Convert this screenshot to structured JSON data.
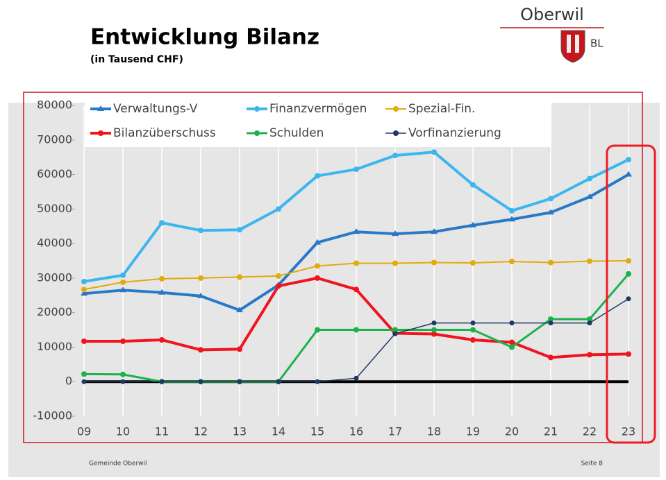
{
  "header": {
    "title": "Entwicklung Bilanz",
    "subtitle": "(in Tausend CHF)",
    "logo_name": "Oberwil",
    "logo_region": "BL"
  },
  "footer": {
    "left": "Gemeinde Oberwil",
    "right": "Seite 8"
  },
  "chart_data": {
    "type": "line",
    "categories": [
      "09",
      "10",
      "11",
      "12",
      "13",
      "14",
      "15",
      "16",
      "17",
      "18",
      "19",
      "20",
      "21",
      "22",
      "23"
    ],
    "series": [
      {
        "name": "Verwaltungs-V",
        "color": "#2878c8",
        "marker": "triangle",
        "values": [
          25500,
          26500,
          25800,
          24800,
          20700,
          28000,
          40300,
          43400,
          42800,
          43400,
          45300,
          47000,
          49000,
          53500,
          60000
        ]
      },
      {
        "name": "Finanzvermögen",
        "color": "#3cb6ee",
        "marker": "circle",
        "values": [
          29000,
          30800,
          46000,
          43800,
          44000,
          50000,
          59600,
          61500,
          65500,
          66500,
          57000,
          49500,
          53000,
          58800,
          64300
        ]
      },
      {
        "name": "Spezial-Fin.",
        "color": "#e2aa0c",
        "marker": "circle",
        "values": [
          26700,
          28800,
          29800,
          30000,
          30300,
          30600,
          33500,
          34300,
          34300,
          34500,
          34400,
          34800,
          34500,
          34900,
          35000
        ]
      },
      {
        "name": "Bilanzüberschuss",
        "color": "#f0141e",
        "marker": "circle",
        "values": [
          11700,
          11700,
          12100,
          9200,
          9400,
          27700,
          30000,
          26700,
          14000,
          13800,
          12100,
          11400,
          7000,
          7800,
          8000
        ]
      },
      {
        "name": "Schulden",
        "color": "#1db14a",
        "marker": "circle",
        "values": [
          2200,
          2100,
          0,
          0,
          0,
          0,
          15000,
          15000,
          15000,
          15000,
          15000,
          10000,
          18100,
          18100,
          31200
        ]
      },
      {
        "name": "Vorfinanzierung",
        "color": "#1f3864",
        "marker": "circle",
        "values": [
          0,
          0,
          0,
          0,
          0,
          0,
          0,
          1000,
          13900,
          17000,
          17000,
          17000,
          17000,
          17000,
          24000
        ]
      }
    ],
    "ylim": [
      -10000,
      80000
    ],
    "yticks": [
      -10000,
      0,
      10000,
      20000,
      30000,
      40000,
      50000,
      60000,
      70000,
      80000
    ],
    "grid": "x"
  }
}
